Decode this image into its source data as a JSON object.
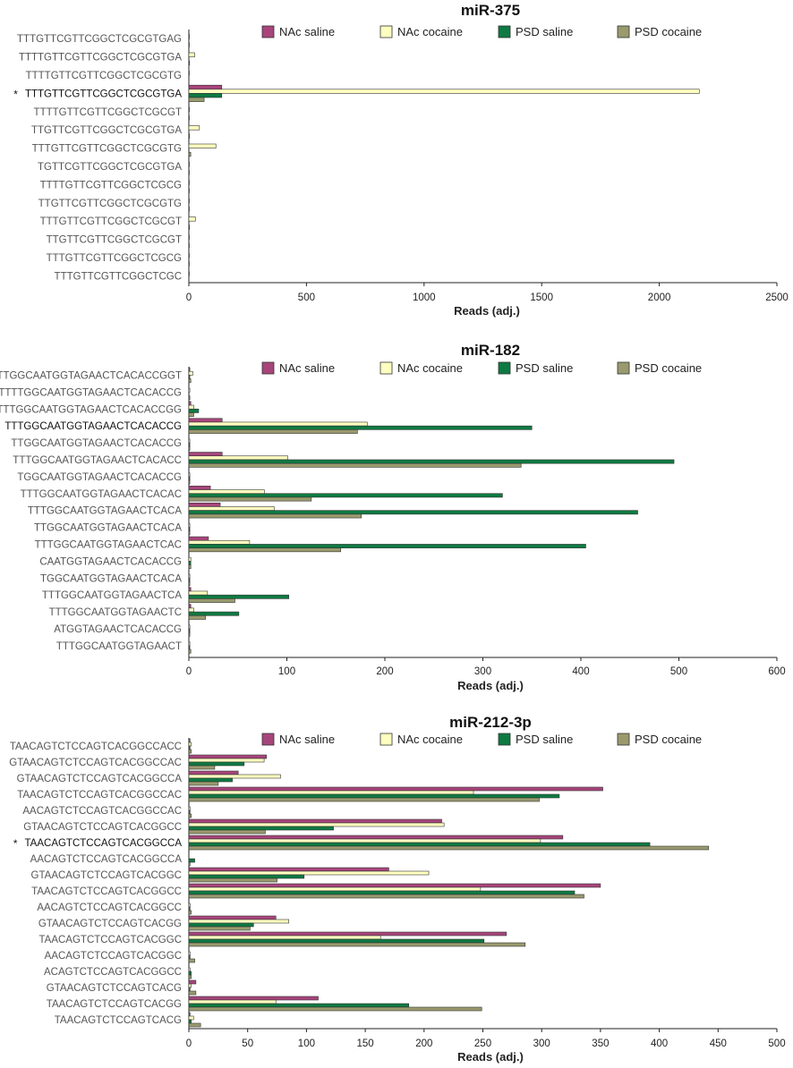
{
  "legend": [
    {
      "name": "NAc saline",
      "color": "#a7457b"
    },
    {
      "name": "NAc cocaine",
      "color": "#ffffc0"
    },
    {
      "name": "PSD saline",
      "color": "#0e7a42"
    },
    {
      "name": "PSD cocaine",
      "color": "#9a9a6e"
    }
  ],
  "chart_data": [
    {
      "type": "bar",
      "title": "miR-375",
      "xlabel": "Reads (adj.)",
      "xlim": [
        0,
        2500
      ],
      "xticks": [
        0,
        500,
        1000,
        1500,
        2000,
        2500
      ],
      "reference_marker": "*",
      "reference_index": 3,
      "categories": [
        "TTTGTTCGTTCGGCTCGCGTGAG",
        "TTTTGTTCGTTCGGCTCGCGTGA",
        "TTTTGTTCGTTCGGCTCGCGTG",
        "TTTGTTCGTTCGGCTCGCGTGA",
        "TTTTGTTCGTTCGGCTCGCGT",
        "TTGTTCGTTCGGCTCGCGTGA",
        "TTTGTTCGTTCGGCTCGCGTG",
        "TGTTCGTTCGGCTCGCGTGA",
        "TTTTGTTCGTTCGGCTCGCG",
        "TTGTTCGTTCGGCTCGCGTG",
        "TTTGTTCGTTCGGCTCGCGT",
        "TTGTTCGTTCGGCTCGCGT",
        "TTTGTTCGTTCGGCTCGCG",
        "TTTGTTCGTTCGGCTCGC"
      ],
      "series": [
        {
          "name": "NAc saline",
          "values": [
            0,
            0,
            0,
            140,
            0,
            0,
            0,
            0,
            0,
            0,
            0,
            0,
            0,
            0
          ]
        },
        {
          "name": "NAc cocaine",
          "values": [
            3,
            25,
            2,
            2170,
            3,
            45,
            115,
            3,
            2,
            2,
            28,
            2,
            2,
            2
          ]
        },
        {
          "name": "PSD saline",
          "values": [
            0,
            0,
            0,
            140,
            0,
            0,
            0,
            0,
            0,
            0,
            0,
            0,
            0,
            0
          ]
        },
        {
          "name": "PSD cocaine",
          "values": [
            2,
            3,
            1,
            65,
            2,
            3,
            8,
            2,
            2,
            2,
            3,
            2,
            2,
            1
          ]
        }
      ]
    },
    {
      "type": "bar",
      "title": "miR-182",
      "xlabel": "Reads (adj.)",
      "xlim": [
        0,
        600
      ],
      "xticks": [
        0,
        100,
        200,
        300,
        400,
        500,
        600
      ],
      "reference_marker": "*",
      "reference_index": 3,
      "categories": [
        "TTTGGCAATGGTAGAACTCACACCGGT",
        "TTTTGGCAATGGTAGAACTCACACCG",
        "TTTGGCAATGGTAGAACTCACACCGG",
        "TTTGGCAATGGTAGAACTCACACCG",
        "TTGGCAATGGTAGAACTCACACCG",
        "TTTGGCAATGGTAGAACTCACACC",
        "TGGCAATGGTAGAACTCACACCG",
        "TTTGGCAATGGTAGAACTCACAC",
        "TTTGGCAATGGTAGAACTCACA",
        "TTGGCAATGGTAGAACTCACA",
        "TTTGGCAATGGTAGAACTCAC",
        "CAATGGTAGAACTCACACCG",
        "TGGCAATGGTAGAACTCACA",
        "TTTGGCAATGGTAGAACTCA",
        "TTTGGCAATGGTAGAACTC",
        "ATGGTAGAACTCACACCG",
        "TTTGGCAATGGTAGAACT"
      ],
      "series": [
        {
          "name": "NAc saline",
          "values": [
            1,
            0,
            2,
            34,
            0,
            34,
            0,
            22,
            32,
            0,
            20,
            0,
            0,
            2,
            2,
            0,
            0
          ]
        },
        {
          "name": "NAc cocaine",
          "values": [
            4,
            1,
            5,
            182,
            1,
            101,
            1,
            77,
            87,
            1,
            62,
            2,
            1,
            19,
            5,
            1,
            1
          ]
        },
        {
          "name": "PSD saline",
          "values": [
            1,
            0,
            10,
            350,
            1,
            495,
            1,
            320,
            458,
            1,
            405,
            2,
            1,
            102,
            51,
            1,
            1
          ]
        },
        {
          "name": "PSD cocaine",
          "values": [
            2,
            1,
            5,
            172,
            1,
            339,
            1,
            125,
            176,
            1,
            155,
            2,
            1,
            47,
            17,
            1,
            2
          ]
        }
      ]
    },
    {
      "type": "bar",
      "title": "miR-212-3p",
      "xlabel": "Reads (adj.)",
      "xlim": [
        0,
        500
      ],
      "xticks": [
        0,
        50,
        100,
        150,
        200,
        250,
        300,
        350,
        400,
        450,
        500
      ],
      "reference_marker": "*",
      "reference_index": 6,
      "categories": [
        "TAACAGTCTCCAGTCACGGCCACC",
        "GTAACAGTCTCCAGTCACGGCCAC",
        "GTAACAGTCTCCAGTCACGGCCA",
        "TAACAGTCTCCAGTCACGGCCAC",
        "AACAGTCTCCAGTCACGGCCAC",
        "GTAACAGTCTCCAGTCACGGCC",
        "TAACAGTCTCCAGTCACGGCCA",
        "AACAGTCTCCAGTCACGGCCA",
        "GTAACAGTCTCCAGTCACGGC",
        "TAACAGTCTCCAGTCACGGCC",
        "AACAGTCTCCAGTCACGGCC",
        "GTAACAGTCTCCAGTCACGG",
        "TAACAGTCTCCAGTCACGGC",
        "AACAGTCTCCAGTCACGGC",
        "ACAGTCTCCAGTCACGGCC",
        "GTAACAGTCTCCAGTCACG",
        "TAACAGTCTCCAGTCACGG",
        "TAACAGTCTCCAGTCACG"
      ],
      "series": [
        {
          "name": "NAc saline",
          "values": [
            1,
            66,
            42,
            352,
            0,
            215,
            318,
            0,
            170,
            350,
            0,
            74,
            270,
            0,
            0,
            6,
            110,
            1
          ]
        },
        {
          "name": "NAc cocaine",
          "values": [
            2,
            64,
            78,
            242,
            1,
            217,
            299,
            0,
            204,
            248,
            1,
            85,
            163,
            1,
            1,
            2,
            74,
            4
          ]
        },
        {
          "name": "PSD saline",
          "values": [
            1,
            47,
            37,
            315,
            1,
            123,
            392,
            5,
            98,
            328,
            1,
            55,
            251,
            1,
            2,
            1,
            187,
            2
          ]
        },
        {
          "name": "PSD cocaine",
          "values": [
            2,
            22,
            25,
            298,
            2,
            65,
            442,
            1,
            75,
            336,
            2,
            52,
            286,
            5,
            2,
            6,
            249,
            10
          ]
        }
      ]
    }
  ]
}
